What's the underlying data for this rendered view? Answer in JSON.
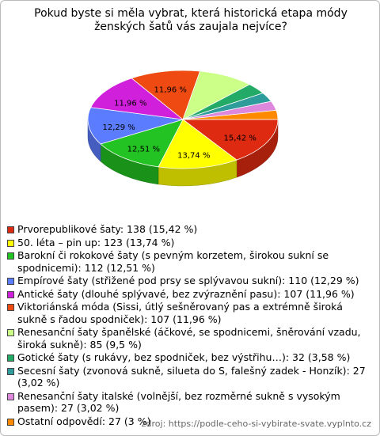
{
  "chart_data": {
    "type": "pie",
    "title": "Pokud byste si měla vybrat, která historická etapa módy ženských šatů vás zaujala nejvíce?",
    "categories": [
      "Prvorepublikové šaty: 138 (15,42 %)",
      "50. léta – pin up: 123 (13,74 %)",
      "Barokní či rokokové šaty (s pevným korzetem, širokou sukní se spodnicemi): 112 (12,51 %)",
      "Empírové šaty (střižené pod prsy se splývavou sukní): 110 (12,29 %)",
      "Antické šaty (dlouhé splývavé, bez zvýraznění pasu): 107 (11,96 %)",
      "Viktoriánská móda (Sissi, útlý sešněrovaný pas a extrémně široká sukně s řadou spodniček): 107 (11,96 %)",
      "Renesanční šaty španělské (áčkové, se spodnicemi, šněrování vzadu, široká sukně): 85 (9,5 %)",
      "Gotické šaty (s rukávy, bez spodniček, bez výstřihu…): 32 (3,58 %)",
      "Secesní šaty (zvonová sukně, silueta do S, falešný zadek - Honzík): 27 (3,02 %)",
      "Renesanční šaty italské (volnější, bez rozměrné sukně s vysokým pasem): 27 (3,02 %)",
      "Ostatní odpovědí: 27 (3 %)"
    ],
    "values": [
      15.42,
      13.74,
      12.51,
      12.29,
      11.96,
      11.96,
      9.5,
      3.58,
      3.02,
      3.02,
      3
    ],
    "value_labels": [
      "15,42 %",
      "13,74 %",
      "12,51 %",
      "12,29 %",
      "11,96 %",
      "11,96 %",
      null,
      null,
      null,
      null,
      null
    ],
    "colors": [
      "#dd2a10",
      "#ffff00",
      "#22c322",
      "#5b7cff",
      "#d020dc",
      "#ee4a12",
      "#ccff88",
      "#22aa66",
      "#2f9c9c",
      "#dd88dd",
      "#ff8a00"
    ],
    "source": "zdroj: https://podle-ceho-si-vybirate-svate.vyplnto.cz"
  }
}
